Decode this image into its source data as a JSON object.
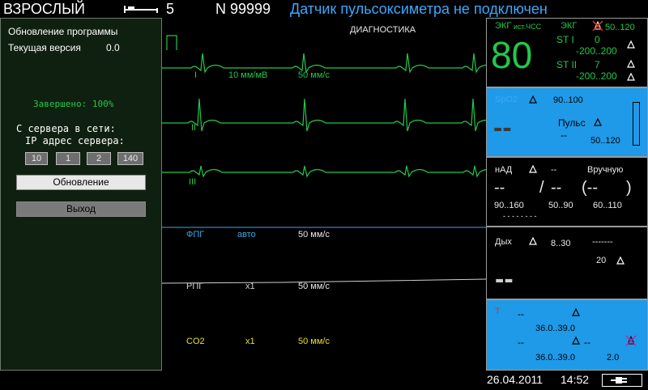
{
  "topbar": {
    "mode": "ВЗРОСЛЫЙ",
    "bed_number": "5",
    "patient_id": "N 99999",
    "alert_message": "Датчик пульсоксиметра не подключен"
  },
  "left_panel": {
    "title": "Обновление программы",
    "current_version_label": "Текущая версия",
    "current_version_value": "0.0",
    "progress_text": "Завершено: 100%",
    "progress": 1.0,
    "server_label": "С сервера в сети:",
    "ip_label": "IP адрес сервера:",
    "ip": [
      "10",
      "1",
      "2",
      "140"
    ],
    "update_button": "Обновление",
    "exit_button": "Выход"
  },
  "waves": {
    "header": "ДИАГНОСТИКА",
    "ecg_lead_i": "I",
    "ecg_lead_ii": "II",
    "ecg_lead_iii": "III",
    "ecg_gain": "10 мм/мВ",
    "ecg_speed": "50 мм/с",
    "ppg_label": "ФПГ",
    "ppg_mode": "авто",
    "ppg_speed": "50 мм/с",
    "rpg_label": "РПГ",
    "rpg_scale": "x1",
    "rpg_speed": "50 мм/с",
    "co2_label": "CO2",
    "co2_scale": "x1",
    "co2_speed": "50 мм/с"
  },
  "colors": {
    "ecg": "#22c84a",
    "ppg": "#3aa8e8",
    "rpg": "#d0d0d0",
    "co2": "#e8e020",
    "alert": "#3aa8ff",
    "panel_blue": "#1e9ae8"
  },
  "ecg_panel": {
    "label": "ЭКГ",
    "source": "ист.ЧСС",
    "label2": "ЭКГ",
    "range": "50..120",
    "hr": "80",
    "st1_label": "ST I",
    "st1_value": "0",
    "st1_range": "-200..200",
    "st2_label": "ST II",
    "st2_value": "7",
    "st2_range": "-200..200"
  },
  "spo2_panel": {
    "label": "SpO2",
    "range": "90..100",
    "value": "--",
    "pulse_label": "Пульс",
    "pulse_value": "--",
    "pulse_range": "50..120"
  },
  "nibp_panel": {
    "label": "нАД",
    "dash_small": "--",
    "mode": "Вручную",
    "sys": "--",
    "slash": "/",
    "dia": "--",
    "mean": "(--",
    "mean_close": ")",
    "sys_range": "90..160",
    "dia_range": "50..90",
    "mean_range": "60..110",
    "time": "- - - - - - - -"
  },
  "resp_panel": {
    "label": "Дых",
    "range": "8..30",
    "dashes": "-------",
    "apnea": "20",
    "value": "--"
  },
  "temp_panel": {
    "label": "T",
    "t1": "--",
    "t1_range": "36.0..39.0",
    "t2": "--",
    "t2_dash": "--",
    "t2_range": "36.0..39.0",
    "delta": "2.0"
  },
  "bottombar": {
    "date": "26.04.2011",
    "time": "14:52"
  },
  "icons": [
    "bed-icon",
    "bell-icon",
    "bell-muted-icon",
    "battery-plug-icon"
  ]
}
